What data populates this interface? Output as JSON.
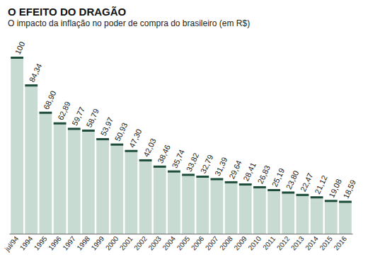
{
  "chart_data": {
    "type": "bar",
    "title": "O EFEITO DO DRAGÃO",
    "subtitle": "O impacto da inflação no poder de compra do brasileiro (em R$)",
    "categories": [
      "jul/94",
      "1994",
      "1995",
      "1996",
      "1997",
      "1998",
      "1999",
      "2000",
      "2001",
      "2002",
      "2003",
      "2004",
      "2005",
      "2006",
      "2007",
      "2008",
      "2009",
      "2010",
      "2011",
      "2012",
      "2013",
      "2014",
      "2015",
      "2016"
    ],
    "values": [
      100,
      84.34,
      68.9,
      62.89,
      59.77,
      58.79,
      53.97,
      50.93,
      47.3,
      42.03,
      38.46,
      35.74,
      33.82,
      32.79,
      31.39,
      29.64,
      28.41,
      26.83,
      25.19,
      23.8,
      22.47,
      21.12,
      19.08,
      18.59
    ],
    "value_labels": [
      "100",
      "84,34",
      "68,90",
      "62,89",
      "59,77",
      "58,79",
      "53,97",
      "50,93",
      "47,30",
      "42,03",
      "38,46",
      "35,74",
      "33,82",
      "32,79",
      "31,39",
      "29,64",
      "28,41",
      "26,83",
      "25,19",
      "23,80",
      "22,47",
      "21,12",
      "19,08",
      "18,59"
    ],
    "color": "#c8dbd2",
    "ylim": [
      0,
      100
    ],
    "grid": false,
    "data_labels": true,
    "tick_labels": "x"
  }
}
